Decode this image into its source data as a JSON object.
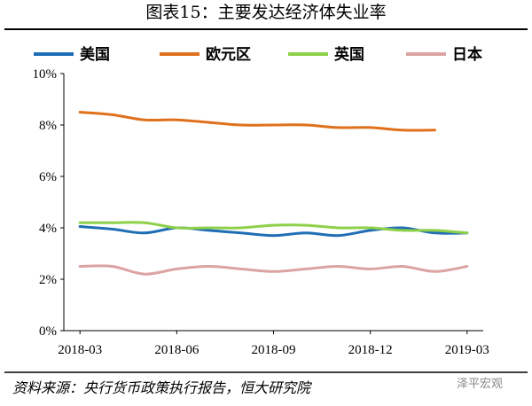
{
  "title": "图表15：主要发达经济体失业率",
  "source": "资料来源：央行货币政策执行报告，恒大研究院",
  "watermark": "泽平宏观",
  "colors": {
    "us": "#1f6eb5",
    "eurozone": "#e0711c",
    "uk": "#8fd04a",
    "japan": "#dca3a3",
    "axis": "#000000",
    "rule": "#000000"
  },
  "chart_data": {
    "type": "line",
    "ylim": [
      0,
      10
    ],
    "yticks": [
      0,
      2,
      4,
      6,
      8,
      10
    ],
    "ytick_labels": [
      "0%",
      "2%",
      "4%",
      "6%",
      "8%",
      "10%"
    ],
    "x": [
      "2018-03",
      "2018-04",
      "2018-05",
      "2018-06",
      "2018-07",
      "2018-08",
      "2018-09",
      "2018-10",
      "2018-11",
      "2018-12",
      "2019-01",
      "2019-02",
      "2019-03"
    ],
    "xtick_labels": [
      "2018-03",
      "2018-06",
      "2018-09",
      "2018-12",
      "2019-03"
    ],
    "legend_position": "top",
    "series": [
      {
        "name": "美国",
        "color_key": "us",
        "values": [
          4.05,
          3.95,
          3.8,
          4.0,
          3.9,
          3.8,
          3.7,
          3.8,
          3.7,
          3.9,
          4.0,
          3.8,
          3.8
        ]
      },
      {
        "name": "欧元区",
        "color_key": "eurozone",
        "values": [
          8.5,
          8.4,
          8.2,
          8.2,
          8.1,
          8.0,
          8.0,
          8.0,
          7.9,
          7.9,
          7.8,
          7.8,
          null
        ]
      },
      {
        "name": "英国",
        "color_key": "uk",
        "values": [
          4.2,
          4.2,
          4.2,
          4.0,
          4.0,
          4.0,
          4.1,
          4.1,
          4.0,
          4.0,
          3.9,
          3.9,
          3.8
        ]
      },
      {
        "name": "日本",
        "color_key": "japan",
        "values": [
          2.5,
          2.5,
          2.2,
          2.4,
          2.5,
          2.4,
          2.3,
          2.4,
          2.5,
          2.4,
          2.5,
          2.3,
          2.5
        ]
      }
    ]
  }
}
